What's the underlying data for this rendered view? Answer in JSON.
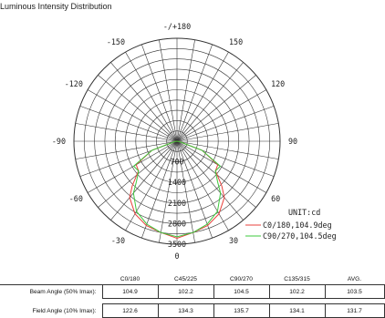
{
  "chart_data": [
    {
      "type": "polar",
      "title": "Luminous Intensity Distribution",
      "angle_labels": [
        {
          "deg": 180,
          "label": "-/+180"
        },
        {
          "deg": 150,
          "label": "150"
        },
        {
          "deg": -150,
          "label": "-150"
        },
        {
          "deg": 120,
          "label": "120"
        },
        {
          "deg": -120,
          "label": "-120"
        },
        {
          "deg": 90,
          "label": "90"
        },
        {
          "deg": -90,
          "label": "-90"
        },
        {
          "deg": 60,
          "label": "60"
        },
        {
          "deg": -60,
          "label": "-60"
        },
        {
          "deg": 30,
          "label": "30"
        },
        {
          "deg": -30,
          "label": "-30"
        },
        {
          "deg": 0,
          "label": "0"
        }
      ],
      "radial_ticks": [
        700,
        1400,
        2100,
        2800,
        3500
      ],
      "radial_max": 3500,
      "unit_label": "UNIT:cd",
      "series": [
        {
          "name": "C0/180,104.9deg",
          "color": "#e8413c",
          "angles": [
            -90,
            -80,
            -70,
            -60,
            -52.45,
            -45,
            -40,
            -30,
            -20,
            -10,
            0,
            10,
            20,
            30,
            40,
            45,
            52.45,
            60,
            70,
            80,
            90
          ],
          "values": [
            0,
            80,
            900,
            1600,
            1650,
            2150,
            2500,
            2850,
            3050,
            3150,
            3300,
            3150,
            3050,
            2850,
            2500,
            2150,
            1650,
            1600,
            900,
            80,
            0
          ]
        },
        {
          "name": "C90/270,104.5deg",
          "color": "#3cc83c",
          "angles": [
            -90,
            -80,
            -70,
            -60,
            -52.25,
            -45,
            -40,
            -30,
            -20,
            -10,
            0,
            10,
            20,
            30,
            40,
            45,
            52.25,
            60,
            70,
            80,
            90
          ],
          "values": [
            0,
            80,
            900,
            1700,
            1650,
            1950,
            2300,
            2750,
            3000,
            3150,
            3250,
            3150,
            3000,
            2750,
            2300,
            1950,
            1650,
            1700,
            900,
            80,
            0
          ]
        }
      ]
    },
    {
      "type": "table",
      "columns": [
        "C0/180",
        "C45/225",
        "C90/270",
        "C135/315",
        "AVG."
      ],
      "rows": [
        {
          "label": "Beam Angle (50% Imax):",
          "values": [
            "104.9",
            "102.2",
            "104.5",
            "102.2",
            "103.5"
          ]
        },
        {
          "label": "Field Angle (10% Imax):",
          "values": [
            "122.6",
            "134.3",
            "135.7",
            "134.1",
            "131.7"
          ]
        }
      ]
    }
  ]
}
